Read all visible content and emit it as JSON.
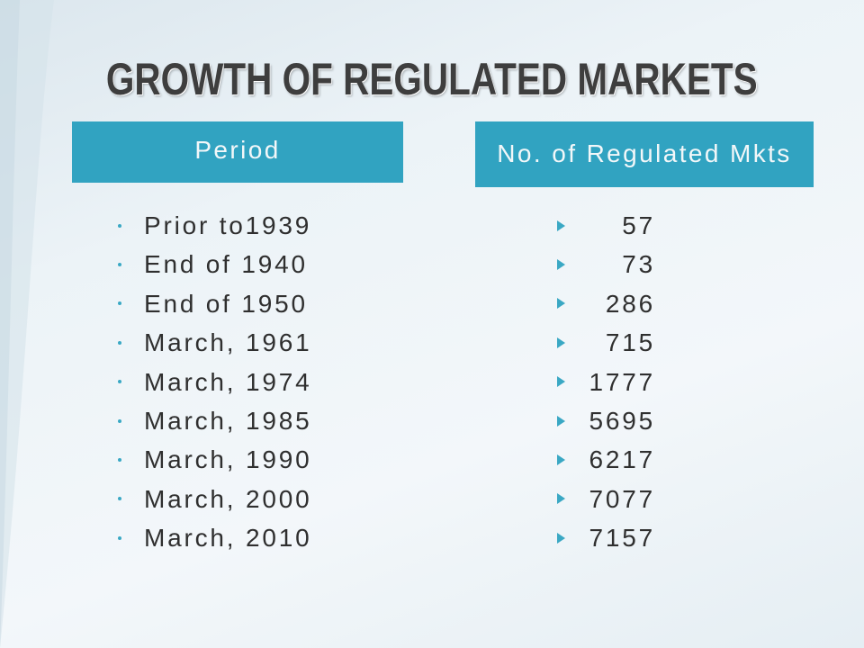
{
  "slide": {
    "title": "GROWTH OF REGULATED MARKETS"
  },
  "headers": {
    "period": "Period",
    "count": "No. of Regulated Mkts"
  },
  "periods": [
    "Prior to1939",
    "End of 1940",
    "End of 1950",
    "March, 1961",
    "March, 1974",
    "March, 1985",
    "March, 1990",
    "March, 2000",
    "March, 2010"
  ],
  "counts": [
    57,
    73,
    286,
    715,
    1777,
    5695,
    6217,
    7077,
    7157
  ],
  "icons": {
    "period_bullet": "bullet-dot-icon",
    "count_bullet": "arrow-bullet-icon"
  },
  "colors": {
    "header_bg": "#31a3c1",
    "header_text": "#f2f7f9",
    "accent": "#3aa8c4",
    "body_text": "#2f2f2f",
    "title_text": "#3e3e3e"
  }
}
